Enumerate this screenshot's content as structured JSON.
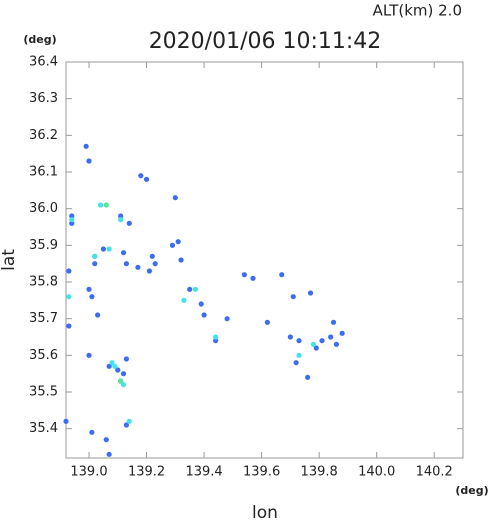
{
  "chart_data": {
    "type": "scatter",
    "title": "2020/01/06 10:11:42",
    "subtitle": "ALT(km) 2.0",
    "y_unit": "(deg)",
    "x_unit": "(deg)",
    "x_label": "lon",
    "y_label": "lat",
    "xlim": [
      138.92,
      140.3
    ],
    "ylim": [
      35.32,
      36.4
    ],
    "xticks": [
      {
        "value": 139.0,
        "label": "139.0"
      },
      139.2,
      139.4,
      139.6,
      139.8,
      {
        "value": 140.0,
        "label": "140.0"
      },
      140.2
    ],
    "yticks": [
      35.4,
      35.5,
      35.6,
      35.7,
      35.8,
      35.9,
      {
        "value": 36.0,
        "label": "36.0"
      },
      36.1,
      36.2,
      36.3,
      36.4
    ],
    "series": [
      {
        "color": "#3b6cf2",
        "x": [
          138.99,
          139.0,
          138.94,
          138.94,
          139.02,
          139.02,
          139.05,
          138.93,
          139.0,
          139.01,
          138.93,
          139.03,
          139.0,
          139.07,
          139.1,
          139.12,
          139.11,
          139.13,
          138.92,
          139.13,
          139.01,
          139.06,
          139.07,
          139.11,
          139.12,
          139.14,
          139.17,
          139.13,
          139.21,
          139.23,
          139.22,
          139.18,
          139.2,
          139.3,
          139.29,
          139.31,
          139.32,
          139.35,
          139.39,
          139.4,
          139.44,
          139.48,
          139.54,
          139.57,
          139.62,
          139.67,
          139.71,
          139.73,
          139.76,
          139.72,
          139.79,
          139.81,
          139.84,
          139.85,
          139.88,
          139.86,
          139.7,
          139.77
        ],
        "y": [
          36.17,
          36.13,
          35.98,
          35.96,
          35.87,
          35.85,
          35.89,
          35.83,
          35.78,
          35.76,
          35.68,
          35.71,
          35.6,
          35.57,
          35.56,
          35.55,
          35.53,
          35.59,
          35.42,
          35.41,
          35.39,
          35.37,
          35.33,
          35.98,
          35.88,
          35.96,
          35.84,
          35.85,
          35.83,
          35.85,
          35.87,
          36.09,
          36.08,
          36.03,
          35.9,
          35.91,
          35.86,
          35.78,
          35.74,
          35.71,
          35.64,
          35.7,
          35.82,
          35.81,
          35.69,
          35.82,
          35.76,
          35.64,
          35.54,
          35.58,
          35.62,
          35.64,
          35.65,
          35.69,
          35.66,
          35.63,
          35.65,
          35.77
        ]
      },
      {
        "color": "#44e2ea",
        "x": [
          139.04,
          139.11,
          138.94,
          138.93,
          139.02,
          139.07,
          139.09,
          139.12,
          139.14,
          139.08,
          139.37,
          139.44,
          139.78,
          139.73,
          139.33
        ],
        "y": [
          36.01,
          35.97,
          35.97,
          35.76,
          35.87,
          35.89,
          35.57,
          35.52,
          35.42,
          35.58,
          35.78,
          35.65,
          35.63,
          35.6,
          35.75
        ]
      },
      {
        "color": "#55e89a",
        "x": [
          139.11,
          139.06
        ],
        "y": [
          35.53,
          36.01
        ]
      }
    ]
  }
}
